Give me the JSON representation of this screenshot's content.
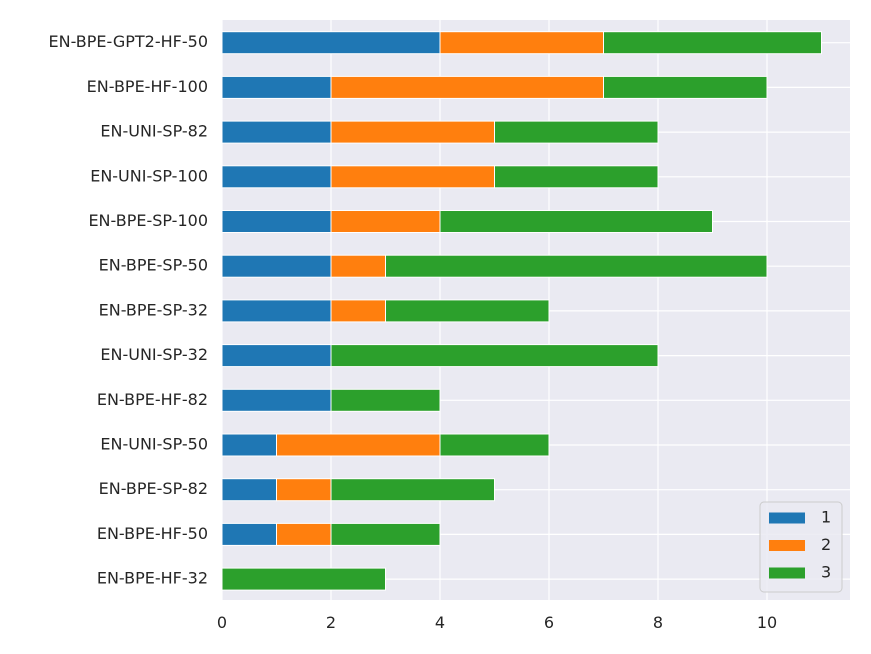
{
  "chart_data": {
    "type": "bar",
    "orientation": "horizontal",
    "stacked": true,
    "title": "",
    "xlabel": "",
    "ylabel": "",
    "xlim": [
      0,
      11.55
    ],
    "xticks": [
      0,
      2,
      4,
      6,
      8,
      10
    ],
    "grid": true,
    "legend_position": "bottom-right",
    "categories": [
      "EN-BPE-GPT2-HF-50",
      "EN-BPE-HF-100",
      "EN-UNI-SP-82",
      "EN-UNI-SP-100",
      "EN-BPE-SP-100",
      "EN-BPE-SP-50",
      "EN-BPE-SP-32",
      "EN-UNI-SP-32",
      "EN-BPE-HF-82",
      "EN-UNI-SP-50",
      "EN-BPE-SP-82",
      "EN-BPE-HF-50",
      "EN-BPE-HF-32"
    ],
    "series": [
      {
        "name": "1",
        "color": "#1f77b4",
        "values": [
          4,
          2,
          2,
          2,
          2,
          2,
          2,
          2,
          2,
          1,
          1,
          1,
          0
        ]
      },
      {
        "name": "2",
        "color": "#ff7f0e",
        "values": [
          3,
          5,
          3,
          3,
          2,
          1,
          1,
          0,
          0,
          3,
          1,
          1,
          0
        ]
      },
      {
        "name": "3",
        "color": "#2ca02c",
        "values": [
          4,
          3,
          3,
          3,
          5,
          7,
          3,
          6,
          2,
          2,
          3,
          2,
          3
        ]
      }
    ]
  },
  "colors": {
    "plot_background": "#eaeaf2",
    "grid": "#ffffff"
  }
}
